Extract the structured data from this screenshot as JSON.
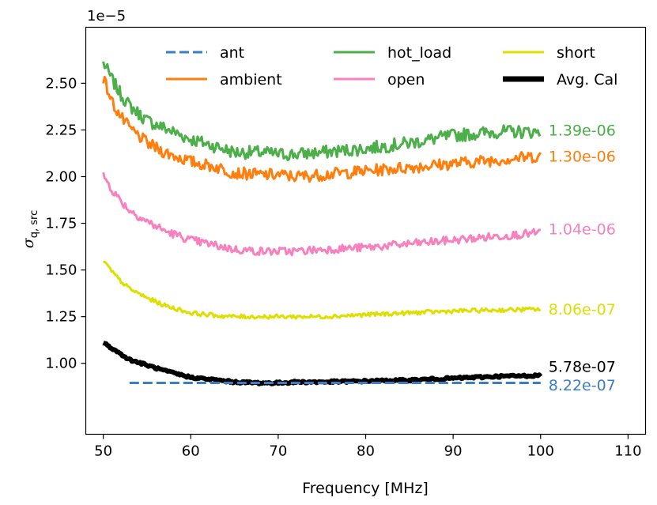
{
  "chart_data": {
    "type": "line",
    "xlabel": "Frequency [MHz]",
    "ylabel_main": "σ",
    "ylabel_sub": "q, src",
    "offset_label": "1e−5",
    "xlim": [
      48,
      112
    ],
    "ylim": [
      0.62,
      2.8
    ],
    "y_scale": 1e-05,
    "xticks": [
      50,
      60,
      70,
      80,
      90,
      100,
      110
    ],
    "xtick_labels": [
      "50",
      "60",
      "70",
      "80",
      "90",
      "100",
      "110"
    ],
    "yticks": [
      1.0,
      1.25,
      1.5,
      1.75,
      2.0,
      2.25,
      2.5
    ],
    "ytick_labels": [
      "1.00",
      "1.25",
      "1.50",
      "1.75",
      "2.00",
      "2.25",
      "2.50"
    ],
    "legend": {
      "placement": "top",
      "columns": 3,
      "entries": [
        {
          "label": "ant",
          "color": "#3a7fbf",
          "style": "dashed"
        },
        {
          "label": "ambient",
          "color": "#ff7f0e",
          "style": "solid"
        },
        {
          "label": "hot_load",
          "color": "#4daf4a",
          "style": "solid"
        },
        {
          "label": "open",
          "color": "#f781bf",
          "style": "solid"
        },
        {
          "label": "short",
          "color": "#dede00",
          "style": "solid"
        },
        {
          "label": "Avg. Cal",
          "color": "#000000",
          "style": "thick"
        }
      ]
    },
    "series": [
      {
        "name": "hot_load",
        "color": "#4daf4a",
        "style": "solid",
        "noise": 0.035,
        "x": [
          50,
          51,
          52,
          53,
          55,
          57,
          60,
          63,
          65,
          68,
          70,
          72,
          75,
          80,
          85,
          90,
          95,
          100
        ],
        "y": [
          2.61,
          2.52,
          2.44,
          2.38,
          2.3,
          2.26,
          2.2,
          2.16,
          2.13,
          2.13,
          2.12,
          2.12,
          2.13,
          2.15,
          2.18,
          2.22,
          2.24,
          2.24
        ],
        "end_label": "1.39e-06"
      },
      {
        "name": "ambient",
        "color": "#ff7f0e",
        "style": "solid",
        "noise": 0.032,
        "x": [
          50,
          51,
          52,
          53,
          55,
          57,
          60,
          63,
          65,
          68,
          70,
          72,
          75,
          80,
          85,
          90,
          95,
          100
        ],
        "y": [
          2.53,
          2.4,
          2.32,
          2.26,
          2.18,
          2.13,
          2.08,
          2.05,
          2.02,
          2.01,
          2.01,
          2.0,
          2.01,
          2.03,
          2.05,
          2.07,
          2.09,
          2.11
        ],
        "end_label": "1.30e-06"
      },
      {
        "name": "open",
        "color": "#f781bf",
        "style": "solid",
        "noise": 0.022,
        "x": [
          50,
          51,
          52,
          53,
          55,
          57,
          60,
          63,
          65,
          68,
          70,
          72,
          75,
          80,
          85,
          90,
          95,
          100
        ],
        "y": [
          2.01,
          1.93,
          1.87,
          1.82,
          1.76,
          1.71,
          1.66,
          1.63,
          1.61,
          1.6,
          1.6,
          1.6,
          1.61,
          1.62,
          1.64,
          1.66,
          1.68,
          1.7
        ],
        "end_label": "1.04e-06"
      },
      {
        "name": "short",
        "color": "#dede00",
        "style": "solid",
        "noise": 0.011,
        "x": [
          50,
          51,
          52,
          53,
          55,
          57,
          60,
          63,
          65,
          68,
          70,
          72,
          75,
          80,
          85,
          90,
          95,
          100
        ],
        "y": [
          1.55,
          1.49,
          1.44,
          1.4,
          1.35,
          1.31,
          1.27,
          1.255,
          1.25,
          1.25,
          1.25,
          1.25,
          1.25,
          1.26,
          1.27,
          1.28,
          1.285,
          1.29
        ],
        "end_label": "8.06e-07"
      },
      {
        "name": "Avg. Cal",
        "color": "#000000",
        "style": "thick",
        "noise": 0.006,
        "x": [
          50,
          51,
          52,
          53,
          55,
          57,
          60,
          63,
          65,
          68,
          70,
          72,
          75,
          80,
          85,
          90,
          95,
          100
        ],
        "y": [
          1.11,
          1.08,
          1.05,
          1.02,
          0.99,
          0.96,
          0.925,
          0.91,
          0.9,
          0.895,
          0.895,
          0.9,
          0.9,
          0.905,
          0.91,
          0.92,
          0.93,
          0.935
        ],
        "end_label": "5.78e-07"
      },
      {
        "name": "ant",
        "color": "#3a7fbf",
        "style": "dashed",
        "noise": 0,
        "x": [
          53,
          100
        ],
        "y": [
          0.895,
          0.895
        ],
        "end_label": "8.22e-07"
      }
    ],
    "end_label_values": {
      "hot_load": 2.25,
      "ambient": 2.11,
      "open": 1.72,
      "short": 1.29,
      "Avg. Cal": 0.985,
      "ant": 0.885
    }
  }
}
